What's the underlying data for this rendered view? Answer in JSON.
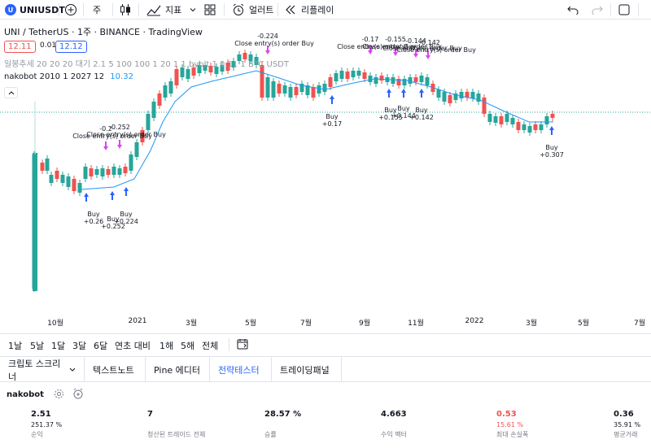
{
  "header": {
    "symbol": "UNIUSDT",
    "symbol_badge": "U",
    "add_icon": "plus-circle-icon",
    "interval": "주",
    "indicators_label": "지표",
    "alert_label": "얼러트",
    "replay_label": "리플레이"
  },
  "legend": {
    "title": "UNI / TetherUS · 1주 · BINANCE · TradingView",
    "bid": "12.11",
    "spread": "0.01",
    "ask": "12.12",
    "indicator_line": "일봉추세 20 20 20 대기 2.1 5 100 100 1 20 1 1 bybit 1 0.11 1 BTC USDT",
    "study_name": "nakobot 2010 1 2027 12",
    "study_value": "10.32"
  },
  "annotations": {
    "close_entry_label": "Close entry(s) order Buy",
    "buy_label": "Buy",
    "buys": [
      {
        "profit": "+0.26"
      },
      {
        "profit": "+0.252"
      },
      {
        "profit": "+0.224"
      },
      {
        "profit": "+0.17"
      },
      {
        "profit": "+0.155"
      },
      {
        "profit": "+0.144"
      },
      {
        "profit": "+0.142"
      },
      {
        "profit": "+0.307"
      }
    ],
    "closes": [
      {
        "value": "-0.2"
      },
      {
        "value": "-0.252"
      },
      {
        "value": "-0.224"
      },
      {
        "value": "-0.17"
      },
      {
        "value": "-0.155"
      },
      {
        "value": "-0.144"
      },
      {
        "value": "-0.142"
      }
    ]
  },
  "xaxis": {
    "labels": [
      "10월",
      "2021",
      "3월",
      "5월",
      "7월",
      "9월",
      "11월",
      "2022",
      "3월",
      "5월",
      "7월"
    ]
  },
  "ranges": [
    "1날",
    "5날",
    "1달",
    "3달",
    "6달",
    "연초 대비",
    "1해",
    "5해",
    "전체"
  ],
  "tabs": [
    {
      "label": "크립토 스크리너"
    },
    {
      "label": "텍스트노트"
    },
    {
      "label": "Pine 에디터"
    },
    {
      "label": "전략테스터"
    },
    {
      "label": "트레이딩패널"
    }
  ],
  "strategy": {
    "name": "nakobot"
  },
  "stats": [
    {
      "value": "2.51",
      "sub": "251.37 %",
      "label": "순익",
      "negative": false
    },
    {
      "value": "7",
      "sub": "",
      "label": "청산된 트레이드 전체",
      "negative": false
    },
    {
      "value": "28.57 %",
      "sub": "",
      "label": "승률",
      "negative": false
    },
    {
      "value": "4.663",
      "sub": "",
      "label": "수익 팩터",
      "negative": false
    },
    {
      "value": "0.53",
      "sub": "15.61 %",
      "label": "최대 손실폭",
      "negative": true
    },
    {
      "value": "0.36",
      "sub": "35.91 %",
      "label": "평균거래",
      "negative": false
    }
  ],
  "colors": {
    "up": "#26a69a",
    "down": "#ef5350",
    "ma": "#2196f3",
    "close_marker": "#e040fb",
    "buy_marker": "#2962ff",
    "accent": "#2962ff"
  }
}
